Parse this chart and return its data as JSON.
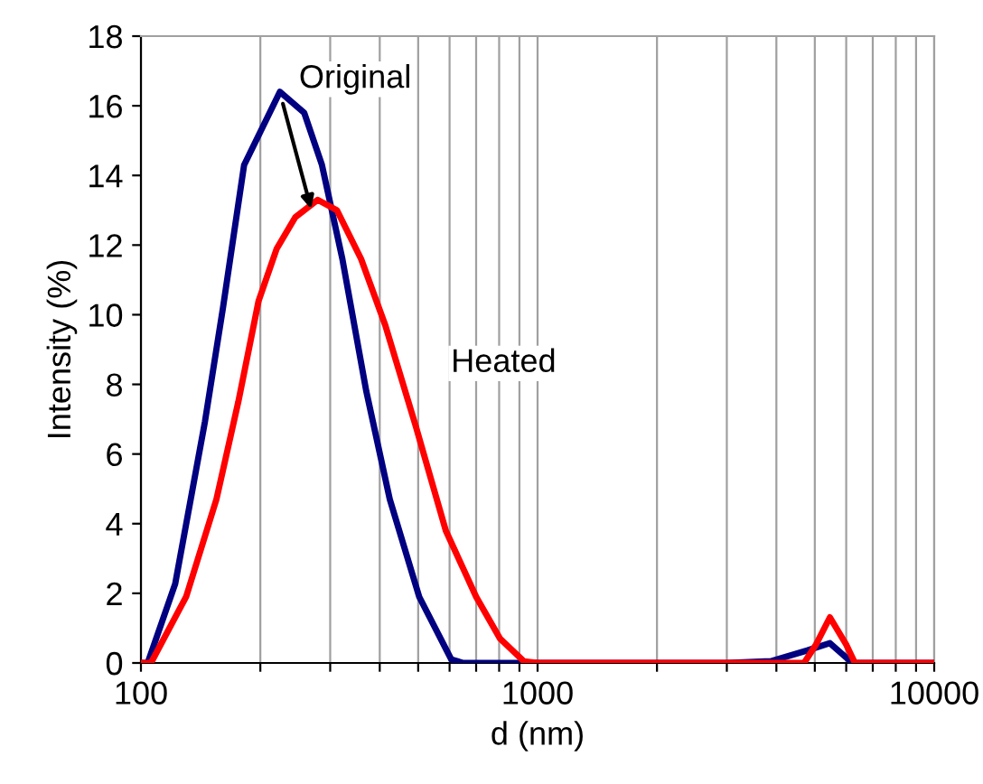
{
  "chart_data": {
    "type": "line",
    "xlabel": "d (nm)",
    "ylabel": "Intensity (%)",
    "log": "x",
    "xlim": [
      100,
      10000
    ],
    "ylim": [
      0,
      18
    ],
    "xticks": [
      100,
      {
        "value": 200,
        "label": null
      },
      {
        "value": 300,
        "label": null
      },
      {
        "value": 400,
        "label": null
      },
      {
        "value": 500,
        "label": null
      },
      {
        "value": 600,
        "label": null
      },
      {
        "value": 700,
        "label": null
      },
      {
        "value": 800,
        "label": null
      },
      {
        "value": 900,
        "label": null
      },
      1000,
      {
        "value": 2000,
        "label": null
      },
      {
        "value": 3000,
        "label": null
      },
      {
        "value": 4000,
        "label": null
      },
      {
        "value": 5000,
        "label": null
      },
      {
        "value": 6000,
        "label": null
      },
      {
        "value": 7000,
        "label": null
      },
      {
        "value": 8000,
        "label": null
      },
      {
        "value": 9000,
        "label": null
      },
      10000
    ],
    "yticks": [
      0,
      2,
      4,
      6,
      8,
      10,
      12,
      14,
      16,
      18
    ],
    "grid": "x",
    "legend": false,
    "marker": "none",
    "line_style": "solid",
    "series": [
      {
        "color": "#000080",
        "x": [
          100,
          104,
          122,
          145,
          161,
          182,
          224,
          258,
          286,
          322,
          370,
          424,
          503,
          606,
          650,
          1000,
          2000,
          3000,
          3873,
          4786,
          5458,
          6220,
          7000,
          10000
        ],
        "values": [
          0,
          0,
          2.27,
          6.93,
          10.2,
          14.3,
          16.4,
          15.8,
          14.3,
          11.6,
          7.8,
          4.7,
          1.9,
          0.1,
          0,
          0,
          0,
          0,
          0.05,
          0.36,
          0.57,
          0,
          0,
          0
        ]
      },
      {
        "color": "#ff0000",
        "x": [
          100,
          106,
          130,
          155,
          176,
          198,
          220,
          245,
          279,
          312,
          359,
          413,
          493,
          587,
          700,
          804,
          923,
          1000,
          2000,
          4000,
          4699,
          5035,
          5458,
          5997,
          6311,
          7000,
          10000
        ],
        "values": [
          0,
          0,
          1.9,
          4.7,
          7.5,
          10.4,
          11.9,
          12.8,
          13.3,
          13.0,
          11.6,
          9.7,
          6.8,
          3.8,
          1.9,
          0.7,
          0.05,
          0,
          0,
          0,
          0,
          0.53,
          1.31,
          0.53,
          0,
          0,
          0
        ]
      }
    ],
    "annotations": [
      {
        "text": "Original",
        "x": 224,
        "y": 16.4
      },
      {
        "text": "Heated",
        "x": 493,
        "y": 6.8
      }
    ]
  }
}
